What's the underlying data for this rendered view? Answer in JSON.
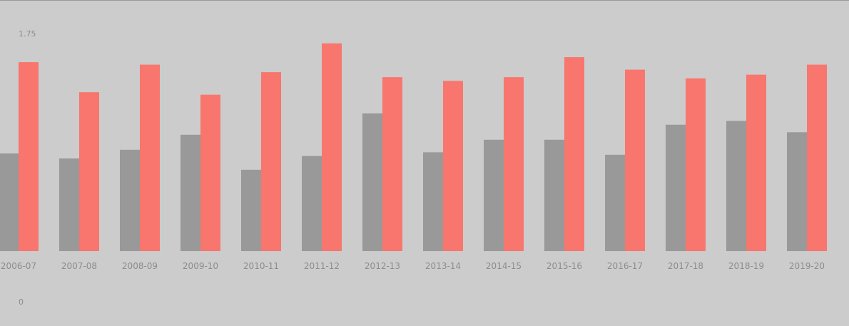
{
  "chart_data": {
    "type": "bar",
    "categories": [
      "2006-07",
      "2007-08",
      "2008-09",
      "2009-10",
      "2010-11",
      "2011-12",
      "2012-13",
      "2013-14",
      "2014-15",
      "2015-16",
      "2016-17",
      "2017-18",
      "2018-19",
      "2019-20"
    ],
    "series": [
      {
        "color": "#999999",
        "values": [
          0.78,
          0.74,
          0.81,
          0.93,
          0.65,
          0.76,
          1.1,
          0.79,
          0.89,
          0.89,
          0.77,
          1.01,
          1.04,
          0.95
        ]
      },
      {
        "color": "#f8766d",
        "values": [
          1.51,
          1.27,
          1.49,
          1.25,
          1.43,
          1.66,
          1.39,
          1.36,
          1.39,
          1.55,
          1.45,
          1.38,
          1.41,
          1.49
        ]
      }
    ],
    "y_tick_labels": {
      "top": "1.75",
      "bottom": "0"
    },
    "ylim": [
      0,
      1.75
    ],
    "grid": false,
    "legend": "none",
    "title": "",
    "xlabel": "",
    "ylabel": ""
  }
}
